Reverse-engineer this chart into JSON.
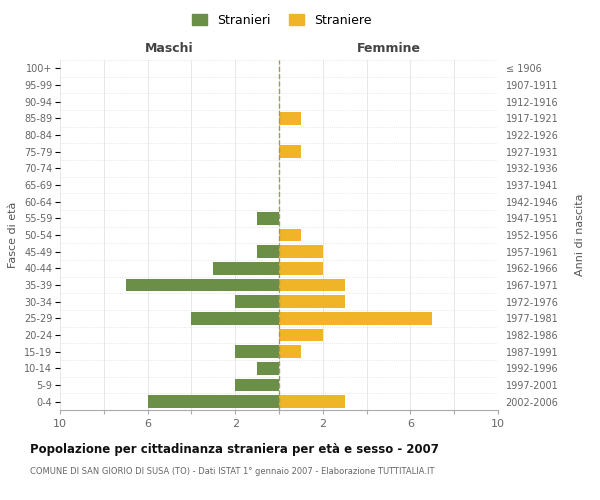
{
  "age_groups": [
    "0-4",
    "5-9",
    "10-14",
    "15-19",
    "20-24",
    "25-29",
    "30-34",
    "35-39",
    "40-44",
    "45-49",
    "50-54",
    "55-59",
    "60-64",
    "65-69",
    "70-74",
    "75-79",
    "80-84",
    "85-89",
    "90-94",
    "95-99",
    "100+"
  ],
  "birth_years": [
    "2002-2006",
    "1997-2001",
    "1992-1996",
    "1987-1991",
    "1982-1986",
    "1977-1981",
    "1972-1976",
    "1967-1971",
    "1962-1966",
    "1957-1961",
    "1952-1956",
    "1947-1951",
    "1942-1946",
    "1937-1941",
    "1932-1936",
    "1927-1931",
    "1922-1926",
    "1917-1921",
    "1912-1916",
    "1907-1911",
    "≤ 1906"
  ],
  "males": [
    6,
    2,
    1,
    2,
    0,
    4,
    2,
    7,
    3,
    1,
    0,
    1,
    0,
    0,
    0,
    0,
    0,
    0,
    0,
    0,
    0
  ],
  "females": [
    3,
    0,
    0,
    1,
    2,
    7,
    3,
    3,
    2,
    2,
    1,
    0,
    0,
    0,
    0,
    1,
    0,
    1,
    0,
    0,
    0
  ],
  "male_color": "#6b8f47",
  "female_color": "#f0b429",
  "center_line_color": "#999966",
  "grid_color": "#dddddd",
  "bg_color": "#ffffff",
  "title": "Popolazione per cittadinanza straniera per età e sesso - 2007",
  "subtitle": "COMUNE DI SAN GIORIO DI SUSA (TO) - Dati ISTAT 1° gennaio 2007 - Elaborazione TUTTITALIA.IT",
  "xlabel_left": "Maschi",
  "xlabel_right": "Femmine",
  "ylabel_left": "Fasce di età",
  "ylabel_right": "Anni di nascita",
  "legend_male": "Stranieri",
  "legend_female": "Straniere",
  "xlim": 10,
  "xtick_positions": [
    -10,
    -8,
    -6,
    -4,
    -2,
    0,
    2,
    4,
    6,
    8,
    10
  ],
  "xtick_labels": [
    "10",
    "",
    "6",
    "",
    "2",
    "",
    "2",
    "",
    "6",
    "",
    "10"
  ]
}
